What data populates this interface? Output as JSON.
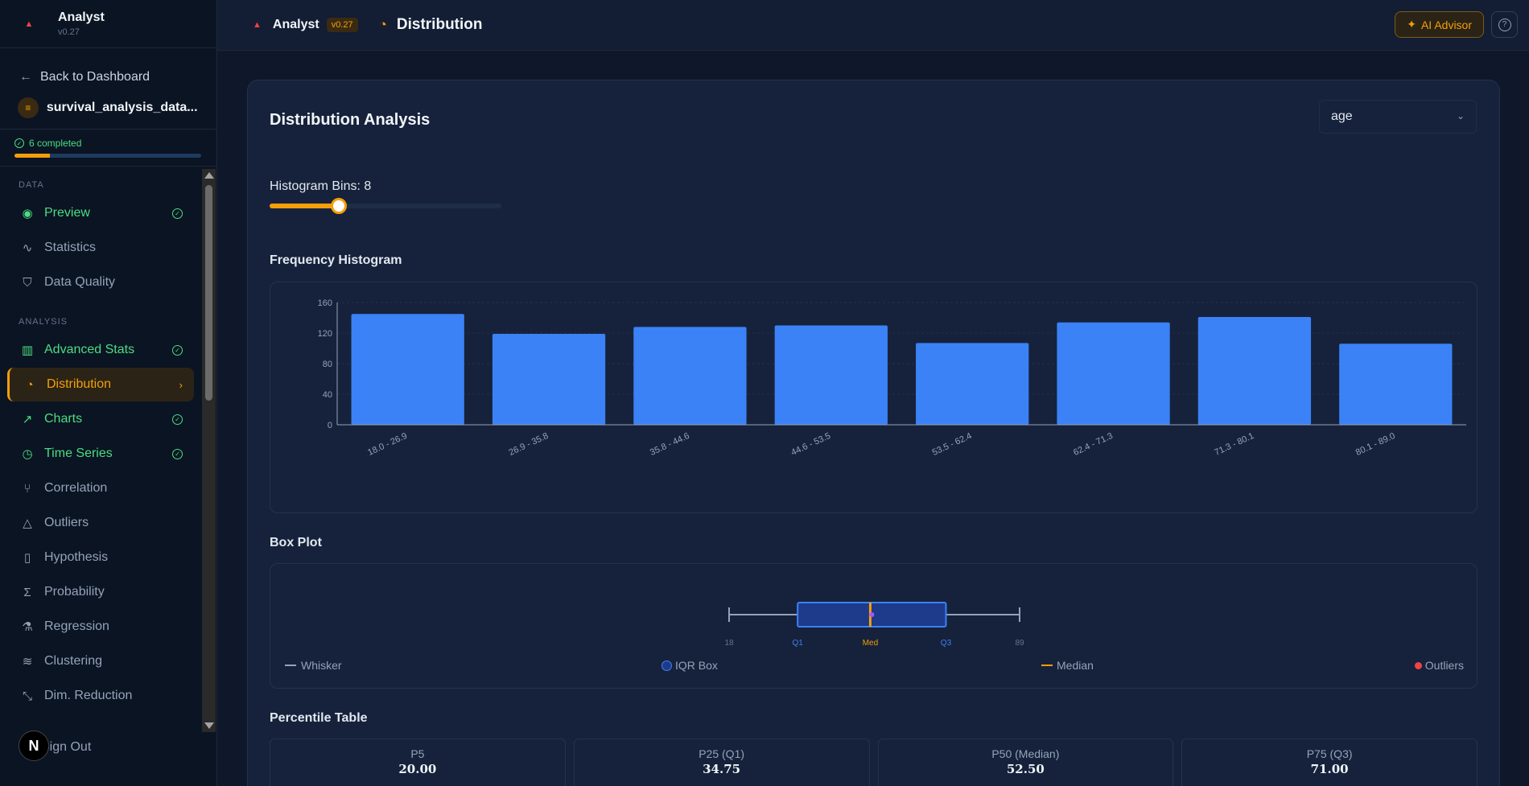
{
  "app": {
    "name": "Analyst",
    "version": "v0.27"
  },
  "sidebar": {
    "back_label": "Back to Dashboard",
    "dataset_name": "survival_analysis_data...",
    "progress_label": "6 completed",
    "progress_fraction": 0.19,
    "sections": [
      {
        "label": "DATA",
        "items": [
          {
            "label": "Preview",
            "icon": "eye-icon",
            "state": "done"
          },
          {
            "label": "Statistics",
            "icon": "activity-icon",
            "state": "none"
          },
          {
            "label": "Data Quality",
            "icon": "shield-icon",
            "state": "none"
          }
        ]
      },
      {
        "label": "ANALYSIS",
        "items": [
          {
            "label": "Advanced Stats",
            "icon": "bar-chart-icon",
            "state": "done"
          },
          {
            "label": "Distribution",
            "icon": "pie-chart-icon",
            "state": "active"
          },
          {
            "label": "Charts",
            "icon": "trending-up-icon",
            "state": "done"
          },
          {
            "label": "Time Series",
            "icon": "clock-icon",
            "state": "done"
          },
          {
            "label": "Correlation",
            "icon": "git-branch-icon",
            "state": "none"
          },
          {
            "label": "Outliers",
            "icon": "alert-triangle-icon",
            "state": "none"
          },
          {
            "label": "Hypothesis",
            "icon": "test-tube-icon",
            "state": "none"
          },
          {
            "label": "Probability",
            "icon": "sigma-icon",
            "state": "none"
          },
          {
            "label": "Regression",
            "icon": "flask-icon",
            "state": "none"
          },
          {
            "label": "Clustering",
            "icon": "layers-icon",
            "state": "none"
          },
          {
            "label": "Dim. Reduction",
            "icon": "minimize-icon",
            "state": "none"
          }
        ]
      }
    ],
    "signout_label": "Sign Out",
    "badge_letter": "N"
  },
  "topbar": {
    "page_title": "Distribution",
    "ai_label": "AI Advisor"
  },
  "main": {
    "title": "Distribution Analysis",
    "column_select": "age",
    "bins_label": "Histogram Bins: 8",
    "bins_fraction": 0.3,
    "histogram_title": "Frequency Histogram",
    "boxplot_title": "Box Plot",
    "percentile_title": "Percentile Table",
    "legend": {
      "whisker": "Whisker",
      "iqr": "IQR Box",
      "median": "Median",
      "outliers": "Outliers"
    },
    "percentiles": [
      {
        "label": "P5",
        "value": "20.00"
      },
      {
        "label": "P25 (Q1)",
        "value": "34.75"
      },
      {
        "label": "P50 (Median)",
        "value": "52.50"
      },
      {
        "label": "P75 (Q3)",
        "value": "71.00"
      }
    ]
  },
  "colors": {
    "accent": "#f59e0b",
    "bar": "#3b82f6",
    "done": "#4ade80",
    "outlier": "#ef4444"
  },
  "chart_data": [
    {
      "type": "bar",
      "categories": [
        "18.0 - 26.9",
        "26.9 - 35.8",
        "35.8 - 44.6",
        "44.6 - 53.5",
        "53.5 - 62.4",
        "62.4 - 71.3",
        "71.3 - 80.1",
        "80.1 - 89.0"
      ],
      "values": [
        145,
        119,
        128,
        130,
        107,
        134,
        141,
        106
      ],
      "yticks": [
        0,
        40,
        80,
        120,
        160
      ],
      "ylim": [
        0,
        160
      ],
      "grid": true
    },
    {
      "type": "box",
      "min": 18,
      "q1": 34.75,
      "median": 52.5,
      "q3": 71,
      "max": 89,
      "labels": {
        "min": "18",
        "q1": "Q1",
        "median": "Med",
        "q3": "Q3",
        "max": "89"
      }
    }
  ]
}
